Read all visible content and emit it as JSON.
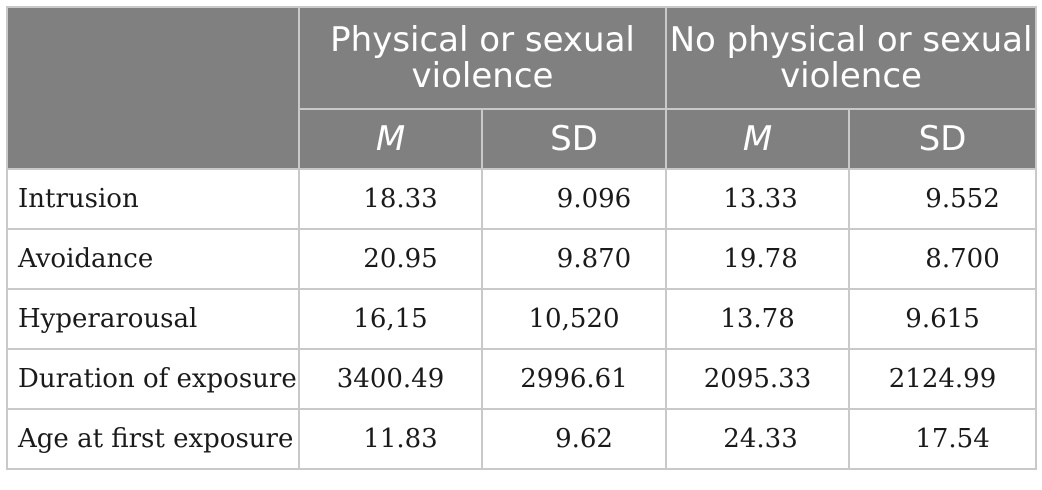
{
  "table": {
    "group_headers": [
      "",
      "Physical or sexual violence",
      "No physical or sexual violence"
    ],
    "sub_headers": [
      "M",
      "SD",
      "M",
      "SD"
    ],
    "rows": [
      {
        "label": "Intrusion",
        "values": [
          "18.33",
          "9.096",
          "13.33",
          "9.552"
        ]
      },
      {
        "label": "Avoidance",
        "values": [
          "20.95",
          "9.870",
          "19.78",
          "8.700"
        ]
      },
      {
        "label": "Hyperarousal",
        "values": [
          "16,15",
          "10,520",
          "13.78",
          "9.615"
        ]
      },
      {
        "label": "Duration of exposure",
        "values": [
          "3400.49",
          "2996.61",
          "2095.33",
          "2124.99"
        ]
      },
      {
        "label": "Age at first exposure",
        "values": [
          "11.83",
          "9.62",
          "24.33",
          "17.54"
        ]
      }
    ]
  },
  "colors": {
    "header_bg": "#808080",
    "header_text": "#ffffff",
    "border": "#c9c9c9"
  }
}
